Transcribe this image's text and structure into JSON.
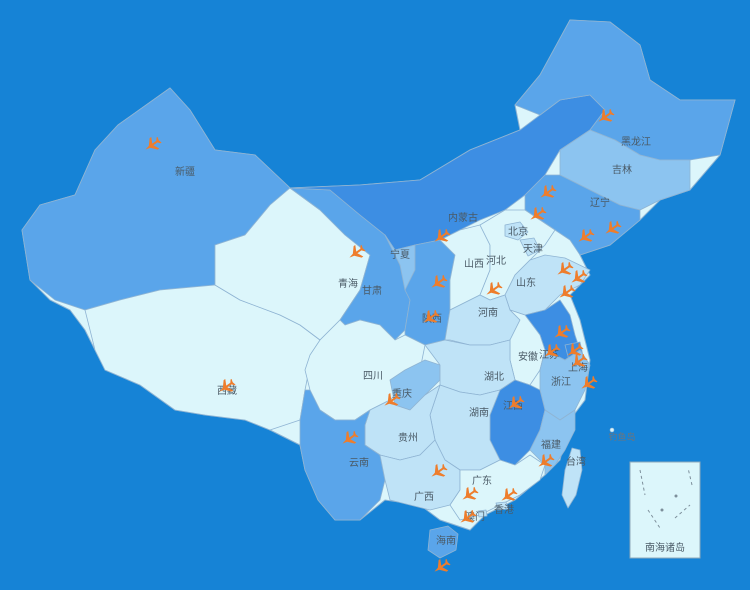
{
  "map": {
    "background_color": "#1683d6",
    "border_color": "#8fb4d3",
    "shade_colors": {
      "darkest": "#3d8ee3",
      "dark": "#5aa5ea",
      "medium": "#8cc4f0",
      "light": "#bfe3f7",
      "lightest": "#dcf6fb"
    },
    "airport_icon": "airplane-icon",
    "airport_color": "#ee7d2c",
    "provinces": [
      {
        "id": "xinjiang",
        "label": "新疆",
        "shade": "dark"
      },
      {
        "id": "xizang",
        "label": "西藏",
        "shade": "lightest"
      },
      {
        "id": "qinghai",
        "label": "青海",
        "shade": "lightest"
      },
      {
        "id": "gansu",
        "label": "甘肃",
        "shade": "dark"
      },
      {
        "id": "neimenggu",
        "label": "内蒙古",
        "shade": "darkest"
      },
      {
        "id": "heilongjiang",
        "label": "黑龙江",
        "shade": "dark"
      },
      {
        "id": "jilin",
        "label": "吉林",
        "shade": "medium"
      },
      {
        "id": "liaoning",
        "label": "辽宁",
        "shade": "dark"
      },
      {
        "id": "ningxia",
        "label": "宁夏",
        "shade": "medium"
      },
      {
        "id": "shanxi_w",
        "label": "陕西",
        "shade": "dark"
      },
      {
        "id": "shanxi",
        "label": "山西",
        "shade": "lightest"
      },
      {
        "id": "hebei",
        "label": "河北",
        "shade": "lightest"
      },
      {
        "id": "beijing",
        "label": "北京",
        "shade": "light"
      },
      {
        "id": "tianjin",
        "label": "天津",
        "shade": "light"
      },
      {
        "id": "shandong",
        "label": "山东",
        "shade": "light"
      },
      {
        "id": "henan",
        "label": "河南",
        "shade": "light"
      },
      {
        "id": "jiangsu",
        "label": "江苏",
        "shade": "darkest"
      },
      {
        "id": "anhui",
        "label": "安徽",
        "shade": "lightest"
      },
      {
        "id": "shanghai",
        "label": "上海",
        "shade": "darkest"
      },
      {
        "id": "sichuan",
        "label": "四川",
        "shade": "lightest"
      },
      {
        "id": "chongqing",
        "label": "重庆",
        "shade": "medium"
      },
      {
        "id": "hubei",
        "label": "湖北",
        "shade": "light"
      },
      {
        "id": "zhejiang",
        "label": "浙江",
        "shade": "medium"
      },
      {
        "id": "jiangxi",
        "label": "江西",
        "shade": "darkest"
      },
      {
        "id": "hunan",
        "label": "湖南",
        "shade": "light"
      },
      {
        "id": "guizhou",
        "label": "贵州",
        "shade": "light"
      },
      {
        "id": "yunnan",
        "label": "云南",
        "shade": "dark"
      },
      {
        "id": "guangxi",
        "label": "广西",
        "shade": "light"
      },
      {
        "id": "guangdong",
        "label": "广东",
        "shade": "lightest"
      },
      {
        "id": "fujian",
        "label": "福建",
        "shade": "medium"
      },
      {
        "id": "taiwan",
        "label": "台湾",
        "shade": "light"
      },
      {
        "id": "hainan",
        "label": "海南",
        "shade": "dark"
      },
      {
        "id": "xianggang",
        "label": "香港",
        "shade": "light"
      },
      {
        "id": "aomen",
        "label": "澳门",
        "shade": "light"
      }
    ],
    "islands": {
      "diaoyu_label": "钓鱼岛",
      "nanhai_label": "南海诸岛"
    },
    "airport_count": 36
  }
}
